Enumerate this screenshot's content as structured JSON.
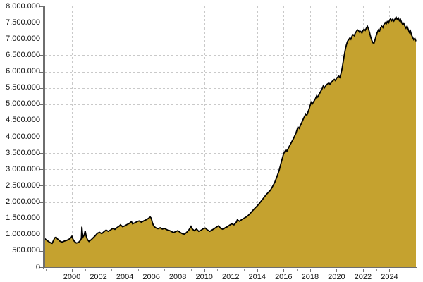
{
  "chart_data": {
    "type": "area",
    "title": "",
    "xlabel": "",
    "ylabel": "",
    "legend": "none",
    "grid": "dashed",
    "x_domain": [
      1997.92,
      2026.0
    ],
    "y_domain": [
      0,
      8000000
    ],
    "colors": {
      "fill": "#C5A22F",
      "outline": "#000000",
      "gridline": "#c9c9c9",
      "axis_dark": "#6e6e6e",
      "axis_light": "#a8a8a8",
      "minor_tick": "#8f8f8f",
      "label": "#111111",
      "background": "#ffffff"
    },
    "y_ticks": [
      {
        "value": 0,
        "label": "0"
      },
      {
        "value": 500000,
        "label": "500.000"
      },
      {
        "value": 1000000,
        "label": "1.000.000"
      },
      {
        "value": 1500000,
        "label": "1.500.000"
      },
      {
        "value": 2000000,
        "label": "2.000.000"
      },
      {
        "value": 2500000,
        "label": "2.500.000"
      },
      {
        "value": 3000000,
        "label": "3.000.000"
      },
      {
        "value": 3500000,
        "label": "3.500.000"
      },
      {
        "value": 4000000,
        "label": "4.000.000"
      },
      {
        "value": 4500000,
        "label": "4.500.000"
      },
      {
        "value": 5000000,
        "label": "5.000.000"
      },
      {
        "value": 5500000,
        "label": "5.500.000"
      },
      {
        "value": 6000000,
        "label": "6.000.000"
      },
      {
        "value": 6500000,
        "label": "6.500.000"
      },
      {
        "value": 7000000,
        "label": "7.000.000"
      },
      {
        "value": 7500000,
        "label": "7.500.000"
      },
      {
        "value": 8000000,
        "label": "8.000.000"
      }
    ],
    "x_major_ticks": [
      {
        "value": 2000,
        "label": "2000"
      },
      {
        "value": 2002,
        "label": "2002"
      },
      {
        "value": 2004,
        "label": "2004"
      },
      {
        "value": 2006,
        "label": "2006"
      },
      {
        "value": 2008,
        "label": "2008"
      },
      {
        "value": 2010,
        "label": "2010"
      },
      {
        "value": 2012,
        "label": "2012"
      },
      {
        "value": 2014,
        "label": "2014"
      },
      {
        "value": 2016,
        "label": "2016"
      },
      {
        "value": 2018,
        "label": "2018"
      },
      {
        "value": 2020,
        "label": "2020"
      },
      {
        "value": 2022,
        "label": "2022"
      },
      {
        "value": 2024,
        "label": "2024"
      }
    ],
    "x_minor_years": [
      1998,
      1999,
      2000,
      2001,
      2002,
      2003,
      2004,
      2005,
      2006,
      2007,
      2008,
      2009,
      2010,
      2011,
      2012,
      2013,
      2014,
      2015,
      2016,
      2017,
      2018,
      2019,
      2020,
      2021,
      2022,
      2023,
      2024,
      2025
    ],
    "points": [
      [
        1997.92,
        820000
      ],
      [
        1998.0,
        860000
      ],
      [
        1998.08,
        830000
      ],
      [
        1998.25,
        780000
      ],
      [
        1998.42,
        740000
      ],
      [
        1998.5,
        730000
      ],
      [
        1998.58,
        800000
      ],
      [
        1998.7,
        900000
      ],
      [
        1998.8,
        920000
      ],
      [
        1998.92,
        860000
      ],
      [
        1999.0,
        840000
      ],
      [
        1999.08,
        800000
      ],
      [
        1999.25,
        770000
      ],
      [
        1999.42,
        800000
      ],
      [
        1999.58,
        820000
      ],
      [
        1999.75,
        850000
      ],
      [
        1999.92,
        900000
      ],
      [
        2000.0,
        950000
      ],
      [
        2000.08,
        860000
      ],
      [
        2000.17,
        800000
      ],
      [
        2000.33,
        740000
      ],
      [
        2000.5,
        760000
      ],
      [
        2000.63,
        820000
      ],
      [
        2000.71,
        880000
      ],
      [
        2000.75,
        1240000
      ],
      [
        2000.79,
        1050000
      ],
      [
        2000.83,
        920000
      ],
      [
        2000.92,
        980000
      ],
      [
        2001.0,
        1120000
      ],
      [
        2001.08,
        950000
      ],
      [
        2001.17,
        850000
      ],
      [
        2001.29,
        790000
      ],
      [
        2001.42,
        830000
      ],
      [
        2001.58,
        890000
      ],
      [
        2001.75,
        960000
      ],
      [
        2001.92,
        1040000
      ],
      [
        2002.08,
        1070000
      ],
      [
        2002.25,
        1030000
      ],
      [
        2002.42,
        1090000
      ],
      [
        2002.58,
        1140000
      ],
      [
        2002.75,
        1100000
      ],
      [
        2002.92,
        1140000
      ],
      [
        2003.08,
        1190000
      ],
      [
        2003.25,
        1160000
      ],
      [
        2003.42,
        1220000
      ],
      [
        2003.58,
        1260000
      ],
      [
        2003.67,
        1300000
      ],
      [
        2003.83,
        1240000
      ],
      [
        2004.0,
        1270000
      ],
      [
        2004.17,
        1310000
      ],
      [
        2004.33,
        1340000
      ],
      [
        2004.5,
        1400000
      ],
      [
        2004.58,
        1330000
      ],
      [
        2004.75,
        1360000
      ],
      [
        2004.92,
        1400000
      ],
      [
        2005.08,
        1420000
      ],
      [
        2005.25,
        1380000
      ],
      [
        2005.42,
        1420000
      ],
      [
        2005.58,
        1450000
      ],
      [
        2005.75,
        1490000
      ],
      [
        2005.92,
        1540000
      ],
      [
        2006.0,
        1500000
      ],
      [
        2006.08,
        1370000
      ],
      [
        2006.17,
        1270000
      ],
      [
        2006.33,
        1210000
      ],
      [
        2006.5,
        1180000
      ],
      [
        2006.67,
        1210000
      ],
      [
        2006.83,
        1170000
      ],
      [
        2007.0,
        1190000
      ],
      [
        2007.17,
        1150000
      ],
      [
        2007.33,
        1130000
      ],
      [
        2007.5,
        1100000
      ],
      [
        2007.67,
        1060000
      ],
      [
        2007.83,
        1090000
      ],
      [
        2008.0,
        1120000
      ],
      [
        2008.17,
        1070000
      ],
      [
        2008.33,
        1030000
      ],
      [
        2008.5,
        1010000
      ],
      [
        2008.67,
        1070000
      ],
      [
        2008.83,
        1140000
      ],
      [
        2009.0,
        1250000
      ],
      [
        2009.08,
        1180000
      ],
      [
        2009.25,
        1120000
      ],
      [
        2009.42,
        1170000
      ],
      [
        2009.58,
        1100000
      ],
      [
        2009.75,
        1130000
      ],
      [
        2009.92,
        1180000
      ],
      [
        2010.08,
        1200000
      ],
      [
        2010.25,
        1140000
      ],
      [
        2010.42,
        1100000
      ],
      [
        2010.58,
        1140000
      ],
      [
        2010.75,
        1180000
      ],
      [
        2010.92,
        1230000
      ],
      [
        2011.08,
        1270000
      ],
      [
        2011.25,
        1190000
      ],
      [
        2011.42,
        1160000
      ],
      [
        2011.58,
        1210000
      ],
      [
        2011.75,
        1240000
      ],
      [
        2011.92,
        1290000
      ],
      [
        2012.08,
        1330000
      ],
      [
        2012.25,
        1300000
      ],
      [
        2012.42,
        1380000
      ],
      [
        2012.5,
        1450000
      ],
      [
        2012.67,
        1410000
      ],
      [
        2012.83,
        1460000
      ],
      [
        2013.0,
        1500000
      ],
      [
        2013.17,
        1540000
      ],
      [
        2013.33,
        1590000
      ],
      [
        2013.5,
        1660000
      ],
      [
        2013.67,
        1740000
      ],
      [
        2013.83,
        1810000
      ],
      [
        2014.0,
        1880000
      ],
      [
        2014.17,
        1960000
      ],
      [
        2014.33,
        2040000
      ],
      [
        2014.5,
        2130000
      ],
      [
        2014.67,
        2220000
      ],
      [
        2014.83,
        2290000
      ],
      [
        2015.0,
        2360000
      ],
      [
        2015.17,
        2480000
      ],
      [
        2015.33,
        2600000
      ],
      [
        2015.5,
        2780000
      ],
      [
        2015.67,
        2980000
      ],
      [
        2015.83,
        3230000
      ],
      [
        2016.0,
        3480000
      ],
      [
        2016.17,
        3600000
      ],
      [
        2016.25,
        3560000
      ],
      [
        2016.42,
        3700000
      ],
      [
        2016.58,
        3820000
      ],
      [
        2016.75,
        3950000
      ],
      [
        2016.92,
        4100000
      ],
      [
        2017.08,
        4300000
      ],
      [
        2017.17,
        4260000
      ],
      [
        2017.33,
        4400000
      ],
      [
        2017.5,
        4560000
      ],
      [
        2017.67,
        4700000
      ],
      [
        2017.75,
        4660000
      ],
      [
        2017.92,
        4850000
      ],
      [
        2018.08,
        5060000
      ],
      [
        2018.17,
        5010000
      ],
      [
        2018.33,
        5120000
      ],
      [
        2018.42,
        5180000
      ],
      [
        2018.5,
        5260000
      ],
      [
        2018.58,
        5220000
      ],
      [
        2018.75,
        5350000
      ],
      [
        2018.92,
        5480000
      ],
      [
        2019.0,
        5560000
      ],
      [
        2019.08,
        5500000
      ],
      [
        2019.25,
        5600000
      ],
      [
        2019.42,
        5650000
      ],
      [
        2019.5,
        5610000
      ],
      [
        2019.67,
        5700000
      ],
      [
        2019.83,
        5760000
      ],
      [
        2019.92,
        5720000
      ],
      [
        2020.0,
        5800000
      ],
      [
        2020.17,
        5860000
      ],
      [
        2020.25,
        5820000
      ],
      [
        2020.33,
        5930000
      ],
      [
        2020.42,
        6100000
      ],
      [
        2020.5,
        6300000
      ],
      [
        2020.58,
        6500000
      ],
      [
        2020.67,
        6700000
      ],
      [
        2020.75,
        6830000
      ],
      [
        2020.83,
        6930000
      ],
      [
        2020.92,
        6980000
      ],
      [
        2021.0,
        7030000
      ],
      [
        2021.08,
        6990000
      ],
      [
        2021.17,
        7090000
      ],
      [
        2021.25,
        7130000
      ],
      [
        2021.33,
        7100000
      ],
      [
        2021.42,
        7180000
      ],
      [
        2021.5,
        7230000
      ],
      [
        2021.58,
        7280000
      ],
      [
        2021.67,
        7250000
      ],
      [
        2021.75,
        7200000
      ],
      [
        2021.83,
        7230000
      ],
      [
        2021.92,
        7180000
      ],
      [
        2022.0,
        7260000
      ],
      [
        2022.08,
        7300000
      ],
      [
        2022.17,
        7260000
      ],
      [
        2022.25,
        7330000
      ],
      [
        2022.33,
        7390000
      ],
      [
        2022.42,
        7300000
      ],
      [
        2022.5,
        7190000
      ],
      [
        2022.58,
        7060000
      ],
      [
        2022.67,
        6950000
      ],
      [
        2022.75,
        6880000
      ],
      [
        2022.83,
        6870000
      ],
      [
        2022.92,
        6990000
      ],
      [
        2023.0,
        7110000
      ],
      [
        2023.08,
        7200000
      ],
      [
        2023.17,
        7280000
      ],
      [
        2023.25,
        7240000
      ],
      [
        2023.33,
        7340000
      ],
      [
        2023.42,
        7390000
      ],
      [
        2023.5,
        7350000
      ],
      [
        2023.58,
        7440000
      ],
      [
        2023.67,
        7500000
      ],
      [
        2023.75,
        7460000
      ],
      [
        2023.83,
        7530000
      ],
      [
        2023.92,
        7490000
      ],
      [
        2024.0,
        7570000
      ],
      [
        2024.08,
        7620000
      ],
      [
        2024.17,
        7560000
      ],
      [
        2024.25,
        7610000
      ],
      [
        2024.33,
        7550000
      ],
      [
        2024.42,
        7610000
      ],
      [
        2024.5,
        7670000
      ],
      [
        2024.58,
        7600000
      ],
      [
        2024.67,
        7640000
      ],
      [
        2024.75,
        7560000
      ],
      [
        2024.83,
        7600000
      ],
      [
        2024.92,
        7500000
      ],
      [
        2025.0,
        7440000
      ],
      [
        2025.08,
        7480000
      ],
      [
        2025.17,
        7390000
      ],
      [
        2025.25,
        7330000
      ],
      [
        2025.33,
        7390000
      ],
      [
        2025.42,
        7290000
      ],
      [
        2025.5,
        7200000
      ],
      [
        2025.58,
        7250000
      ],
      [
        2025.67,
        7120000
      ],
      [
        2025.75,
        7050000
      ],
      [
        2025.83,
        6980000
      ],
      [
        2025.92,
        7020000
      ],
      [
        2026.0,
        6930000
      ]
    ]
  }
}
